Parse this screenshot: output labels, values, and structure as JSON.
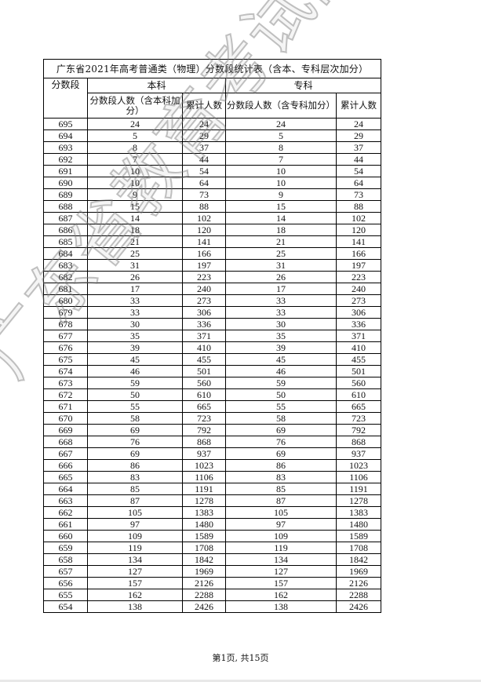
{
  "table": {
    "title": "广东省2021年高考普通类（物理）分数段统计表（含本、专科层次加分）",
    "col_score": "分数段",
    "group_benke": "本科",
    "group_zhuanke": "专科",
    "benke_count_header": "分数段人数（含本科加分）",
    "benke_cum_header": "累计人数",
    "zhuanke_count_header": "分数段人数（含专科加分）",
    "zhuanke_cum_header": "累计人数",
    "rows": [
      [
        "695",
        "24",
        "24",
        "24",
        "24"
      ],
      [
        "694",
        "5",
        "29",
        "5",
        "29"
      ],
      [
        "693",
        "8",
        "37",
        "8",
        "37"
      ],
      [
        "692",
        "7",
        "44",
        "7",
        "44"
      ],
      [
        "691",
        "10",
        "54",
        "10",
        "54"
      ],
      [
        "690",
        "10",
        "64",
        "10",
        "64"
      ],
      [
        "689",
        "9",
        "73",
        "9",
        "73"
      ],
      [
        "688",
        "15",
        "88",
        "15",
        "88"
      ],
      [
        "687",
        "14",
        "102",
        "14",
        "102"
      ],
      [
        "686",
        "18",
        "120",
        "18",
        "120"
      ],
      [
        "685",
        "21",
        "141",
        "21",
        "141"
      ],
      [
        "684",
        "25",
        "166",
        "25",
        "166"
      ],
      [
        "683",
        "31",
        "197",
        "31",
        "197"
      ],
      [
        "682",
        "26",
        "223",
        "26",
        "223"
      ],
      [
        "681",
        "17",
        "240",
        "17",
        "240"
      ],
      [
        "680",
        "33",
        "273",
        "33",
        "273"
      ],
      [
        "679",
        "33",
        "306",
        "33",
        "306"
      ],
      [
        "678",
        "30",
        "336",
        "30",
        "336"
      ],
      [
        "677",
        "35",
        "371",
        "35",
        "371"
      ],
      [
        "676",
        "39",
        "410",
        "39",
        "410"
      ],
      [
        "675",
        "45",
        "455",
        "45",
        "455"
      ],
      [
        "674",
        "46",
        "501",
        "46",
        "501"
      ],
      [
        "673",
        "59",
        "560",
        "59",
        "560"
      ],
      [
        "672",
        "50",
        "610",
        "50",
        "610"
      ],
      [
        "671",
        "55",
        "665",
        "55",
        "665"
      ],
      [
        "670",
        "58",
        "723",
        "58",
        "723"
      ],
      [
        "669",
        "69",
        "792",
        "69",
        "792"
      ],
      [
        "668",
        "76",
        "868",
        "76",
        "868"
      ],
      [
        "667",
        "69",
        "937",
        "69",
        "937"
      ],
      [
        "666",
        "86",
        "1023",
        "86",
        "1023"
      ],
      [
        "665",
        "83",
        "1106",
        "83",
        "1106"
      ],
      [
        "664",
        "85",
        "1191",
        "85",
        "1191"
      ],
      [
        "663",
        "87",
        "1278",
        "87",
        "1278"
      ],
      [
        "662",
        "105",
        "1383",
        "105",
        "1383"
      ],
      [
        "661",
        "97",
        "1480",
        "97",
        "1480"
      ],
      [
        "660",
        "109",
        "1589",
        "109",
        "1589"
      ],
      [
        "659",
        "119",
        "1708",
        "119",
        "1708"
      ],
      [
        "658",
        "134",
        "1842",
        "134",
        "1842"
      ],
      [
        "657",
        "127",
        "1969",
        "127",
        "1969"
      ],
      [
        "656",
        "157",
        "2126",
        "157",
        "2126"
      ],
      [
        "655",
        "162",
        "2288",
        "162",
        "2288"
      ],
      [
        "654",
        "138",
        "2426",
        "138",
        "2426"
      ]
    ]
  },
  "footer": "第1页, 共15页",
  "watermark": "广东省教育考试院"
}
